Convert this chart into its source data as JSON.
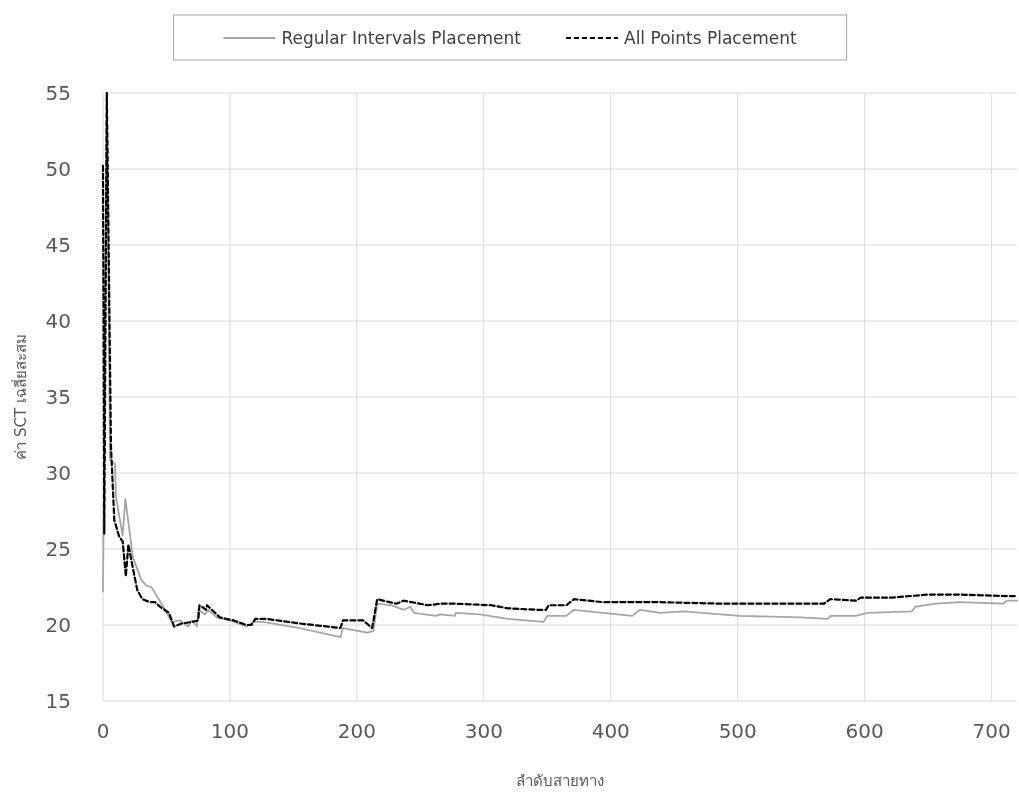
{
  "chart_data": {
    "type": "line",
    "xlabel": "ลำดับสายทาง",
    "ylabel": "ค่า SCT เฉลี่ยสะสม",
    "xlim": [
      0,
      720
    ],
    "xticks": [
      0,
      100,
      200,
      300,
      400,
      500,
      600,
      700
    ],
    "ylim": [
      15,
      55
    ],
    "yticks": [
      15,
      20,
      25,
      30,
      35,
      40,
      45,
      50,
      55
    ],
    "grid": true,
    "legend": "top",
    "marker": "none",
    "series": [
      {
        "name": "Regular Intervals Placement",
        "color": "#a6a6a6",
        "line_style": "solid",
        "x": [
          0,
          3,
          5.5,
          9.4,
          10.2,
          15.5,
          17.6,
          20.7,
          23.4,
          30,
          34,
          38,
          41,
          47.5,
          54,
          60.6,
          67,
          70,
          74,
          75,
          80.5,
          83,
          89.6,
          100,
          113,
          118,
          126,
          155,
          187,
          189,
          208,
          213,
          216,
          227,
          237,
          242,
          245,
          262,
          266,
          277,
          278,
          297,
          319,
          347,
          350,
          365,
          371,
          394,
          417,
          423,
          439,
          457,
          502,
          549,
          571,
          573,
          593,
          602,
          637,
          640,
          656,
          675,
          709,
          712,
          720
        ],
        "values": [
          22.2,
          55,
          30.9,
          30.6,
          28.4,
          25.9,
          28.3,
          26.3,
          24.5,
          23.0,
          22.6,
          22.5,
          22.1,
          21.2,
          20.2,
          20.3,
          19.9,
          20.3,
          19.9,
          21.0,
          20.7,
          21.0,
          20.5,
          20.3,
          19.9,
          20.2,
          20.2,
          19.8,
          19.2,
          19.8,
          19.5,
          19.6,
          21.4,
          21.3,
          21.0,
          21.2,
          20.8,
          20.6,
          20.7,
          20.6,
          20.8,
          20.7,
          20.4,
          20.2,
          20.6,
          20.6,
          21.0,
          20.8,
          20.6,
          21.0,
          20.8,
          20.9,
          20.6,
          20.5,
          20.4,
          20.6,
          20.6,
          20.8,
          20.9,
          21.2,
          21.4,
          21.5,
          21.4,
          21.6,
          21.6
        ]
      },
      {
        "name": "All Points Placement",
        "color": "#000000",
        "line_style": "dashed",
        "x": [
          0,
          1,
          3,
          6.3,
          8.9,
          12.8,
          15.5,
          18,
          20,
          23.4,
          27,
          31,
          37,
          41,
          45,
          52,
          56,
          62,
          70,
          75,
          76,
          78,
          81,
          82,
          92,
          103,
          113,
          117,
          120,
          129,
          155,
          187,
          189,
          205,
          212,
          216,
          231,
          237,
          256,
          266,
          278,
          306,
          319,
          341,
          349,
          351,
          365,
          371,
          394,
          439,
          489,
          568,
          573,
          593,
          597,
          621,
          650,
          675,
          712,
          720
        ],
        "values": [
          50.2,
          26,
          55,
          31.7,
          26.9,
          25.8,
          25.5,
          23.2,
          25.3,
          23.8,
          22.3,
          21.7,
          21.5,
          21.5,
          21.2,
          20.8,
          19.9,
          20.1,
          20.2,
          20.3,
          21.3,
          21.2,
          21.0,
          21.3,
          20.5,
          20.3,
          20.0,
          20.0,
          20.4,
          20.4,
          20.1,
          19.8,
          20.3,
          20.3,
          19.8,
          21.7,
          21.4,
          21.6,
          21.3,
          21.4,
          21.4,
          21.3,
          21.1,
          21.0,
          21.0,
          21.3,
          21.3,
          21.7,
          21.5,
          21.5,
          21.4,
          21.4,
          21.7,
          21.6,
          21.8,
          21.8,
          22.0,
          22.0,
          21.9,
          21.9
        ]
      }
    ]
  }
}
